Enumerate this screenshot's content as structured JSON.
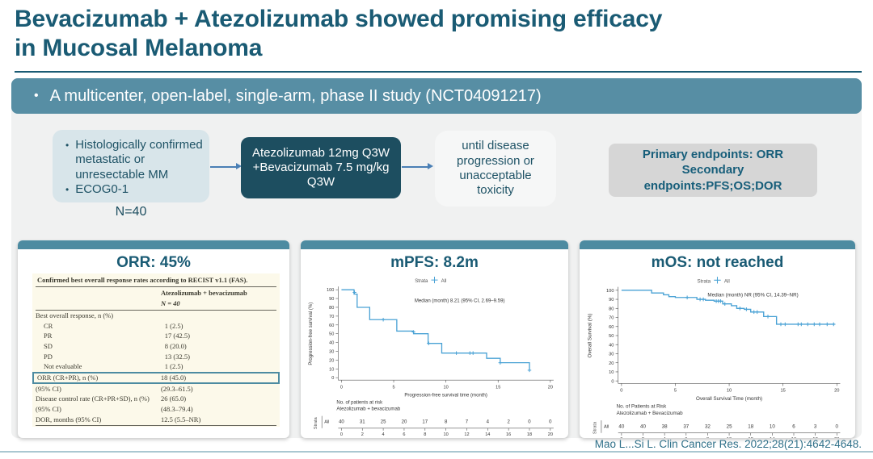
{
  "title": {
    "line1": "Bevacizumab + Atezolizumab showed promising efficacy",
    "line2": "in Mucosal Melanoma"
  },
  "banner": {
    "text": "A multicenter, open-label, single-arm, phase II study (NCT04091217)"
  },
  "flow": {
    "inclusion_box": {
      "bullets": [
        "Histologically confirmed  metastatic or unresectable MM",
        "ECOG0-1"
      ],
      "note": "N=40"
    },
    "treatment_box": {
      "text": "Atezolizumab 12mg Q3W +Bevacizumab 7.5 mg/kg Q3W"
    },
    "duration_box": {
      "text": "until disease progression or unacceptable toxicity"
    },
    "endpoints_box": {
      "lines": [
        "Primary endpoints: ORR",
        "Secondary",
        "endpoints:PFS;OS;DOR"
      ]
    }
  },
  "orr_panel": {
    "title": "ORR: 45%",
    "table": {
      "caption": "Confirmed best overall response rates according to RECIST v1.1 (FAS).",
      "column_header": "Atezolizumab + bevacizumab",
      "n_header": "N = 40",
      "rows": [
        {
          "label": "Best overall response, n (%)",
          "value": "",
          "indent": false
        },
        {
          "label": "CR",
          "value": "1 (2.5)",
          "indent": true
        },
        {
          "label": "PR",
          "value": "17 (42.5)",
          "indent": true
        },
        {
          "label": "SD",
          "value": "8 (20.0)",
          "indent": true
        },
        {
          "label": "PD",
          "value": "13 (32.5)",
          "indent": true
        },
        {
          "label": "Not evaluable",
          "value": "1 (2.5)",
          "indent": true
        },
        {
          "label": "ORR (CR+PR), n (%)",
          "value": "18 (45.0)",
          "highlight": true
        },
        {
          "label": "(95% CI)",
          "value": "(29.3–61.5)"
        },
        {
          "label": "Disease control rate (CR+PR+SD), n (%)",
          "value": "26 (65.0)"
        },
        {
          "label": "(95% CI)",
          "value": "(48.3–79.4)"
        },
        {
          "label": "DOR, months (95% CI)",
          "value": "12.5 (5.5–NR)"
        }
      ]
    }
  },
  "chart_data": [
    {
      "type": "line",
      "subtype": "kaplan-meier",
      "panel_title": "mPFS: 8.2m",
      "legend": {
        "prefix": "Strata",
        "label": "All",
        "position": "top-center"
      },
      "annotation": "Median (month) 8.21 (95% CI, 2.69–9.59)",
      "annotation_pos": [
        7.0,
        86
      ],
      "xlabel": "Progression-free survival time (month)",
      "ylabel": "Progression-free survival (%)",
      "xlim": [
        0,
        20
      ],
      "ylim": [
        0,
        100
      ],
      "xticks": [
        0,
        5,
        10,
        15,
        20
      ],
      "yticks": [
        0,
        10,
        20,
        30,
        40,
        50,
        60,
        70,
        80,
        90,
        100
      ],
      "series": [
        {
          "name": "All",
          "color": "#4aa2d5",
          "steps": [
            [
              0,
              100
            ],
            [
              1.2,
              100
            ],
            [
              1.2,
              95
            ],
            [
              1.5,
              95
            ],
            [
              1.5,
              80
            ],
            [
              2.7,
              80
            ],
            [
              2.7,
              66
            ],
            [
              5.3,
              66
            ],
            [
              5.3,
              53
            ],
            [
              6.9,
              53
            ],
            [
              6.9,
              50
            ],
            [
              8.3,
              50
            ],
            [
              8.3,
              39
            ],
            [
              9.6,
              39
            ],
            [
              9.6,
              28
            ],
            [
              13.9,
              28
            ],
            [
              13.9,
              22
            ],
            [
              15.2,
              22
            ],
            [
              15.2,
              17
            ],
            [
              18,
              17
            ],
            [
              18,
              8.5
            ]
          ],
          "censors": [
            [
              1.25,
              97
            ],
            [
              4.0,
              66
            ],
            [
              6.9,
              52
            ],
            [
              8.35,
              39
            ],
            [
              11,
              28
            ],
            [
              12.3,
              28
            ],
            [
              12.6,
              28
            ],
            [
              15.2,
              17
            ],
            [
              18,
              8.5
            ]
          ]
        }
      ],
      "risk_table": {
        "header1": "No. of patients at risk",
        "header2": "Atezolizumab + bevacizumab",
        "strata_axis_label": "Strata",
        "row_label": "All",
        "times": [
          0,
          2,
          4,
          6,
          8,
          10,
          12,
          14,
          16,
          18,
          20
        ],
        "values": [
          40,
          31,
          25,
          20,
          17,
          8,
          7,
          4,
          2,
          0,
          0
        ],
        "xlabel": "Progression-free survival time (month)"
      }
    },
    {
      "type": "line",
      "subtype": "kaplan-meier",
      "panel_title": "mOS: not reached",
      "legend": {
        "prefix": "Strata",
        "label": "All",
        "position": "top-center"
      },
      "annotation": "Median (month) NR (95% CI, 14.39–NR)",
      "annotation_pos": [
        8.0,
        93
      ],
      "xlabel": "Overall Survival Time (month)",
      "ylabel": "Overall Survival (%)",
      "xlim": [
        0,
        20
      ],
      "ylim": [
        0,
        100
      ],
      "xticks": [
        0,
        5,
        10,
        15,
        20
      ],
      "yticks": [
        0,
        10,
        20,
        30,
        40,
        50,
        60,
        70,
        80,
        90,
        100
      ],
      "series": [
        {
          "name": "All",
          "color": "#4aa2d5",
          "steps": [
            [
              0,
              100
            ],
            [
              2.8,
              100
            ],
            [
              2.8,
              97
            ],
            [
              3.9,
              97
            ],
            [
              3.9,
              95
            ],
            [
              4.4,
              95
            ],
            [
              4.4,
              93
            ],
            [
              5.0,
              93
            ],
            [
              5.0,
              92
            ],
            [
              7.0,
              92
            ],
            [
              7.0,
              90
            ],
            [
              7.8,
              90
            ],
            [
              7.8,
              89
            ],
            [
              8.6,
              89
            ],
            [
              8.6,
              88
            ],
            [
              9.4,
              88
            ],
            [
              9.4,
              85
            ],
            [
              10.2,
              85
            ],
            [
              10.2,
              83
            ],
            [
              10.7,
              83
            ],
            [
              10.7,
              80
            ],
            [
              11.4,
              80
            ],
            [
              11.4,
              79
            ],
            [
              12.0,
              79
            ],
            [
              12.0,
              76
            ],
            [
              13.2,
              76
            ],
            [
              13.2,
              71
            ],
            [
              14.4,
              71
            ],
            [
              14.4,
              62.5
            ],
            [
              19.8,
              62.5
            ]
          ],
          "censors": [
            [
              6.1,
              92
            ],
            [
              7.3,
              90
            ],
            [
              7.6,
              90
            ],
            [
              8.8,
              88
            ],
            [
              9.0,
              88
            ],
            [
              9.2,
              88
            ],
            [
              9.6,
              85
            ],
            [
              11.0,
              80
            ],
            [
              11.6,
              79
            ],
            [
              12.3,
              76
            ],
            [
              12.6,
              76
            ],
            [
              13.6,
              71
            ],
            [
              14.8,
              62.5
            ],
            [
              15.2,
              62.5
            ],
            [
              16.4,
              62.5
            ],
            [
              16.7,
              62.5
            ],
            [
              17.3,
              62.5
            ],
            [
              17.9,
              62.5
            ],
            [
              18.4,
              62.5
            ],
            [
              19.1,
              62.5
            ],
            [
              19.7,
              62.5
            ]
          ]
        }
      ],
      "risk_table": {
        "header1": "No. of Patients at Risk",
        "header2": "Atezolizumab  + Bevacizumab",
        "strata_axis_label": "Strata",
        "row_label": "All",
        "times": [
          0,
          2,
          4,
          6,
          8,
          10,
          12,
          14,
          16,
          18,
          20
        ],
        "values": [
          40,
          40,
          38,
          37,
          32,
          25,
          18,
          10,
          6,
          3,
          0
        ],
        "xlabel": "Overall Survival Time (month)"
      }
    }
  ],
  "citation": "Mao L...Si L. Clin Cancer Res. 2022;28(21):4642-4648.",
  "colors": {
    "accent": "#1a5b74",
    "banner": "#578ea4",
    "treatment_box": "#1d4e60",
    "inclusion_box": "#d8e5ea",
    "endpoints_box": "#d6d6d6",
    "card_header": "#4d8ba1",
    "km_curve": "#4aa2d5",
    "table_background": "#fcf9ea",
    "highlight_border": "#4d8ba1",
    "citation": "#2f7089"
  }
}
